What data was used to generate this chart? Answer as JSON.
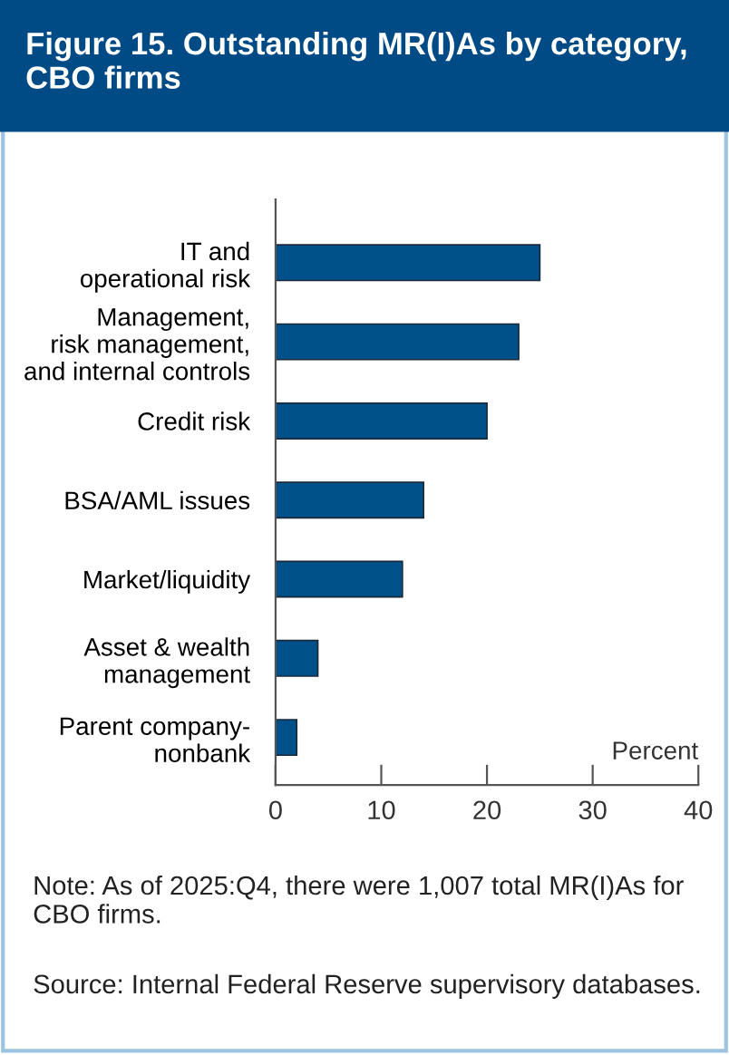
{
  "chart_data": {
    "type": "bar",
    "orientation": "horizontal",
    "title": "Figure 15. Outstanding MR(I)As by category, CBO firms",
    "xlabel": "Percent",
    "categories": [
      "IT and\noperational risk",
      "Management,\nrisk management,\nand internal controls",
      "Credit risk",
      "BSA/AML issues",
      "Market/liquidity",
      "Asset & wealth\nmanagement",
      "Parent company-\nnonbank"
    ],
    "values": [
      25,
      23,
      20,
      14,
      12,
      4,
      2
    ],
    "color": "#005089",
    "xlim": [
      0,
      40
    ],
    "xticks": [
      0,
      10,
      20,
      30,
      40
    ],
    "grid": false,
    "legend": false,
    "annotations": [
      "Note: As of 2025:Q4, there were 1,007 total MR(I)As for CBO firms.",
      "Source: Internal Federal Reserve supervisory databases."
    ]
  }
}
